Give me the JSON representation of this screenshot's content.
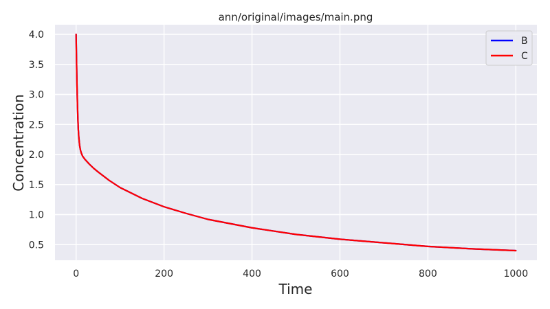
{
  "chart_data": {
    "type": "line",
    "title": "ann/original/images/main.png",
    "xlabel": "Time",
    "ylabel": "Concentration",
    "xlim": [
      -48,
      1048
    ],
    "ylim": [
      0.24,
      4.16
    ],
    "xticks": [
      0,
      200,
      400,
      600,
      800,
      1000
    ],
    "xtick_labels": [
      "0",
      "200",
      "400",
      "600",
      "800",
      "1000"
    ],
    "yticks": [
      0.5,
      1.0,
      1.5,
      2.0,
      2.5,
      3.0,
      3.5,
      4.0
    ],
    "ytick_labels": [
      "0.5",
      "1.0",
      "1.5",
      "2.0",
      "2.5",
      "3.0",
      "3.5",
      "4.0"
    ],
    "grid": true,
    "legend_position": "top-right",
    "background": "#eaeaf2",
    "series": [
      {
        "name": "B",
        "color": "#0000ff",
        "x": [
          0,
          1,
          2,
          3,
          4,
          5,
          6,
          8,
          10,
          12,
          15,
          18,
          20,
          25,
          30,
          40,
          50,
          75,
          100,
          150,
          200,
          250,
          300,
          400,
          500,
          600,
          700,
          800,
          900,
          1000
        ],
        "y": [
          4.0,
          3.55,
          3.15,
          2.85,
          2.6,
          2.42,
          2.3,
          2.15,
          2.07,
          2.02,
          1.97,
          1.94,
          1.92,
          1.88,
          1.84,
          1.77,
          1.71,
          1.57,
          1.45,
          1.27,
          1.13,
          1.02,
          0.92,
          0.78,
          0.67,
          0.59,
          0.53,
          0.47,
          0.43,
          0.4
        ]
      },
      {
        "name": "C",
        "color": "#ff0000",
        "x": [
          0,
          1,
          2,
          3,
          4,
          5,
          6,
          8,
          10,
          12,
          15,
          18,
          20,
          25,
          30,
          40,
          50,
          75,
          100,
          150,
          200,
          250,
          300,
          400,
          500,
          600,
          700,
          800,
          900,
          1000
        ],
        "y": [
          4.0,
          3.55,
          3.15,
          2.85,
          2.6,
          2.42,
          2.3,
          2.15,
          2.07,
          2.02,
          1.97,
          1.94,
          1.92,
          1.88,
          1.84,
          1.77,
          1.71,
          1.57,
          1.45,
          1.27,
          1.13,
          1.02,
          0.92,
          0.78,
          0.67,
          0.59,
          0.53,
          0.47,
          0.43,
          0.4
        ]
      }
    ]
  }
}
